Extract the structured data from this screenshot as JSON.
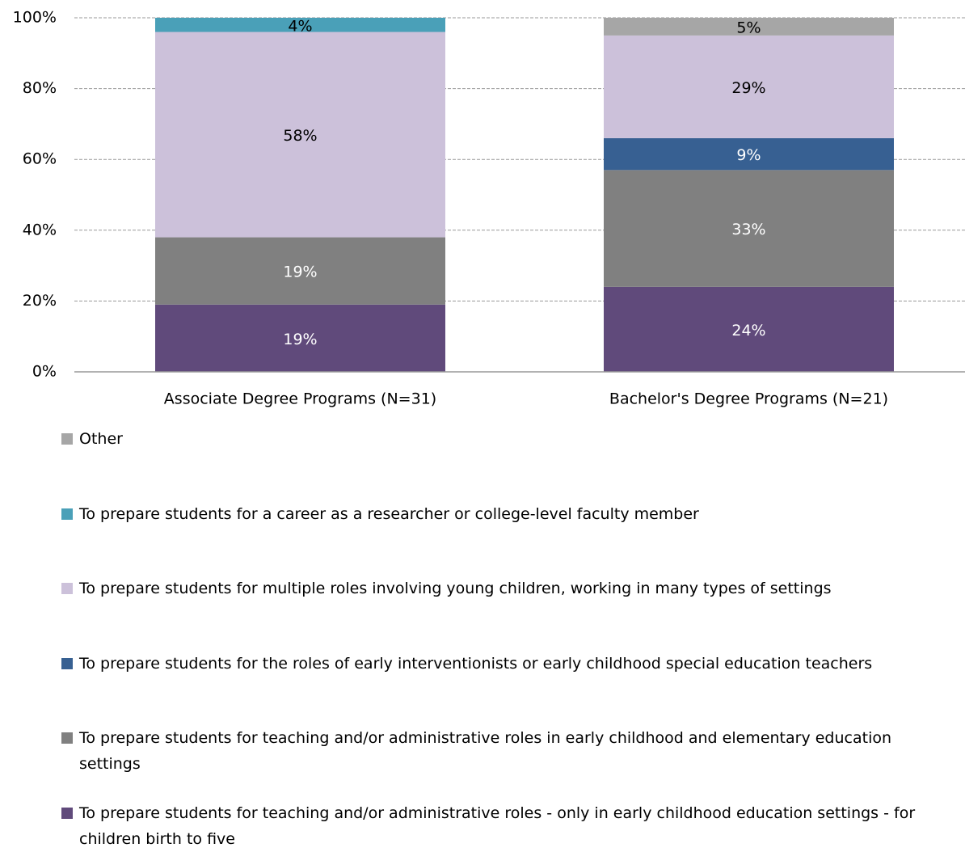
{
  "chart_data": {
    "type": "stacked-bar",
    "categories": [
      "Associate Degree Programs (N=31)",
      "Bachelor's Degree Programs (N=21)"
    ],
    "series": [
      {
        "name": "To prepare students for teaching and/or administrative roles - only in early childhood education settings - for children birth to five",
        "color": "#604a7b",
        "values": [
          19,
          24
        ],
        "value_labels": [
          "19%",
          "24%"
        ],
        "label_color": "#ffffff"
      },
      {
        "name": "To prepare students for teaching and/or administrative roles in early childhood and elementary education settings",
        "color": "#808080",
        "values": [
          19,
          33
        ],
        "value_labels": [
          "19%",
          "33%"
        ],
        "label_color": "#ffffff"
      },
      {
        "name": "To prepare students for the roles of early interventionists or early childhood special education teachers",
        "color": "#376092",
        "values": [
          null,
          9
        ],
        "value_labels": [
          null,
          "9%"
        ],
        "label_color": "#ffffff"
      },
      {
        "name": "To prepare students for multiple roles involving young children, working in many types of settings",
        "color": "#ccc1da",
        "values": [
          58,
          29
        ],
        "value_labels": [
          "58%",
          "29%"
        ],
        "label_color": "#000000"
      },
      {
        "name": "To prepare students for a career as a researcher or college-level faculty member",
        "color": "#4aa0b8",
        "values": [
          4,
          null
        ],
        "value_labels": [
          "4%",
          null
        ],
        "label_color": "#000000"
      },
      {
        "name": "Other",
        "color": "#a6a6a6",
        "values": [
          null,
          5
        ],
        "value_labels": [
          null,
          "5%"
        ],
        "label_color": "#000000"
      }
    ],
    "ylim": [
      0,
      100
    ],
    "yticks": [
      {
        "value": 0,
        "label": "0%"
      },
      {
        "value": 20,
        "label": "20%"
      },
      {
        "value": 40,
        "label": "40%"
      },
      {
        "value": 60,
        "label": "60%"
      },
      {
        "value": 80,
        "label": "80%"
      },
      {
        "value": 100,
        "label": "100%"
      }
    ],
    "grid": true,
    "legend": "bottom"
  }
}
